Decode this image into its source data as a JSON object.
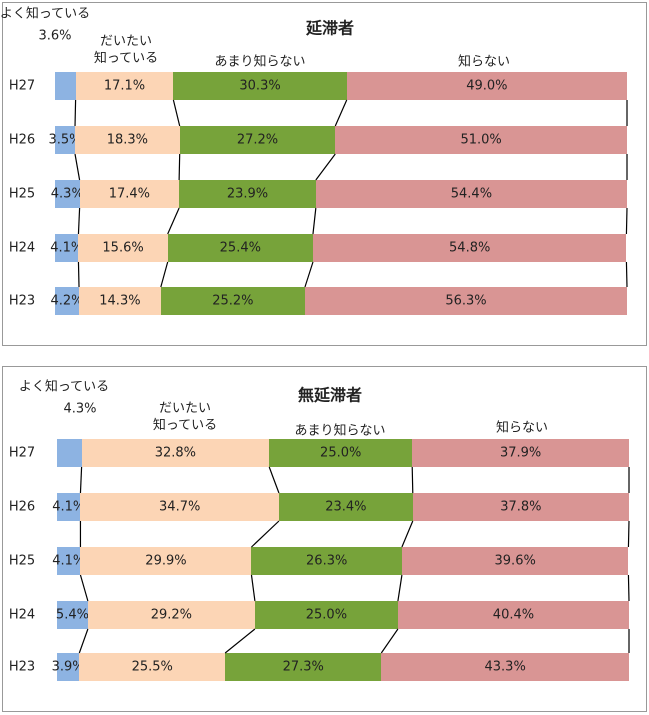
{
  "chart_data": [
    {
      "type": "bar",
      "orientation": "horizontal",
      "stacked": true,
      "title": "延滞者",
      "categories": [
        "H27",
        "H26",
        "H25",
        "H24",
        "H23"
      ],
      "xlim": [
        0,
        100
      ],
      "series": [
        {
          "name": "よく知っている",
          "color": "#8db3e2",
          "values": [
            3.6,
            3.5,
            4.3,
            4.1,
            4.2
          ],
          "value_labels": [
            "3.6%",
            "3.5%",
            "4.3%",
            "4.1%",
            "4.2%"
          ]
        },
        {
          "name": "だいたい\n知っている",
          "color": "#fcd5b5",
          "values": [
            17.1,
            18.3,
            17.4,
            15.6,
            14.3
          ],
          "value_labels": [
            "17.1%",
            "18.3%",
            "17.4%",
            "15.6%",
            "14.3%"
          ]
        },
        {
          "name": "あまり知らない",
          "color": "#77a33a",
          "values": [
            30.3,
            27.2,
            23.9,
            25.4,
            25.2
          ],
          "value_labels": [
            "30.3%",
            "27.2%",
            "23.9%",
            "25.4%",
            "25.2%"
          ]
        },
        {
          "name": "知らない",
          "color": "#d99594",
          "values": [
            49.0,
            51.0,
            54.4,
            54.8,
            56.3
          ],
          "value_labels": [
            "49.0%",
            "51.0%",
            "54.4%",
            "54.8%",
            "56.3%"
          ]
        }
      ]
    },
    {
      "type": "bar",
      "orientation": "horizontal",
      "stacked": true,
      "title": "無延滞者",
      "categories": [
        "H27",
        "H26",
        "H25",
        "H24",
        "H23"
      ],
      "xlim": [
        0,
        100
      ],
      "series": [
        {
          "name": "よく知っている",
          "color": "#8db3e2",
          "values": [
            4.3,
            4.1,
            4.1,
            5.4,
            3.9
          ],
          "value_labels": [
            "4.3%",
            "4.1%",
            "4.1%",
            "5.4%",
            "3.9%"
          ]
        },
        {
          "name": "だいたい\n知っている",
          "color": "#fcd5b5",
          "values": [
            32.8,
            34.7,
            29.9,
            29.2,
            25.5
          ],
          "value_labels": [
            "32.8%",
            "34.7%",
            "29.9%",
            "29.2%",
            "25.5%"
          ]
        },
        {
          "name": "あまり知らない",
          "color": "#77a33a",
          "values": [
            25.0,
            23.4,
            26.3,
            25.0,
            27.3
          ],
          "value_labels": [
            "25.0%",
            "23.4%",
            "26.3%",
            "25.0%",
            "27.3%"
          ]
        },
        {
          "name": "知らない",
          "color": "#d99594",
          "values": [
            37.9,
            37.8,
            39.6,
            40.4,
            43.3
          ],
          "value_labels": [
            "37.9%",
            "37.8%",
            "39.6%",
            "40.4%",
            "43.3%"
          ]
        }
      ]
    }
  ]
}
